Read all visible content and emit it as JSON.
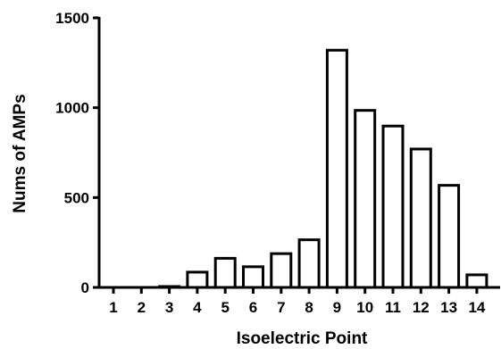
{
  "chart_data": {
    "type": "bar",
    "categories": [
      "1",
      "2",
      "3",
      "4",
      "5",
      "6",
      "7",
      "8",
      "9",
      "10",
      "11",
      "12",
      "13",
      "14"
    ],
    "values": [
      0,
      0,
      5,
      85,
      162,
      115,
      188,
      265,
      1320,
      985,
      898,
      770,
      568,
      70
    ],
    "xlabel": "Isoelectric Point",
    "ylabel": "Nums of AMPs",
    "ylim": [
      0,
      1500
    ],
    "yticks": [
      0,
      500,
      1000,
      1500
    ],
    "grid": false,
    "legend": "none",
    "bar_fill": "#ffffff",
    "bar_stroke": "#000000"
  }
}
